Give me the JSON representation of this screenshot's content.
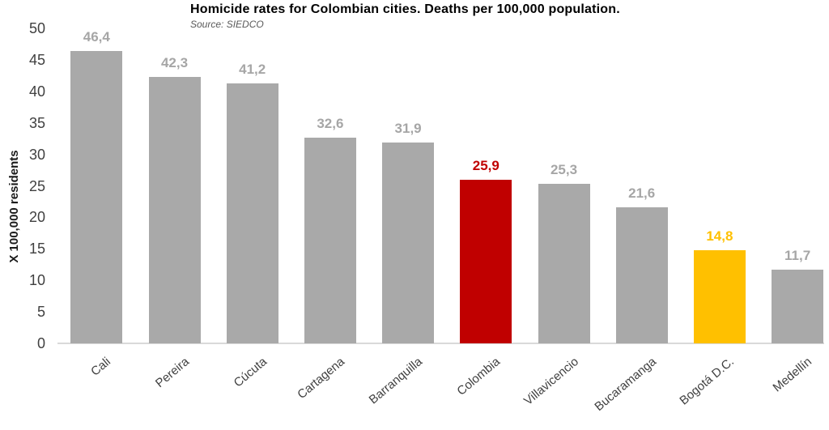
{
  "chart_data": {
    "type": "bar",
    "title": "Homicide rates for Colombian cities. Deaths per 100,000 population.",
    "subtitle": "Source: SIEDCO",
    "ylabel": "X 100,000 residents",
    "xlabel": "",
    "ylim": [
      0,
      50
    ],
    "ytick_step": 5,
    "ytick_labels": [
      "0",
      "5",
      "10",
      "15",
      "20",
      "25",
      "30",
      "35",
      "40",
      "45",
      "50"
    ],
    "grid": false,
    "legend": "none",
    "decimal_separator": ",",
    "categories": [
      "Cali",
      "Pereira",
      "Cúcuta",
      "Cartagena",
      "Barranquilla",
      "Colombia",
      "Villavicencio",
      "Bucaramanga",
      "Bogotá D.C.",
      "Medellín"
    ],
    "values": [
      46.4,
      42.3,
      41.2,
      32.6,
      31.9,
      25.9,
      25.3,
      21.6,
      14.8,
      11.7
    ],
    "bars": [
      {
        "category": "Cali",
        "value": 46.4,
        "display": "46,4",
        "bar_color": "#a9a9a9",
        "label_color": "#a6a6a6"
      },
      {
        "category": "Pereira",
        "value": 42.3,
        "display": "42,3",
        "bar_color": "#a9a9a9",
        "label_color": "#a6a6a6"
      },
      {
        "category": "Cúcuta",
        "value": 41.2,
        "display": "41,2",
        "bar_color": "#a9a9a9",
        "label_color": "#a6a6a6"
      },
      {
        "category": "Cartagena",
        "value": 32.6,
        "display": "32,6",
        "bar_color": "#a9a9a9",
        "label_color": "#a6a6a6"
      },
      {
        "category": "Barranquilla",
        "value": 31.9,
        "display": "31,9",
        "bar_color": "#a9a9a9",
        "label_color": "#a6a6a6"
      },
      {
        "category": "Colombia",
        "value": 25.9,
        "display": "25,9",
        "bar_color": "#c00000",
        "label_color": "#c00000"
      },
      {
        "category": "Villavicencio",
        "value": 25.3,
        "display": "25,3",
        "bar_color": "#a9a9a9",
        "label_color": "#a6a6a6"
      },
      {
        "category": "Bucaramanga",
        "value": 21.6,
        "display": "21,6",
        "bar_color": "#a9a9a9",
        "label_color": "#a6a6a6"
      },
      {
        "category": "Bogotá D.C.",
        "value": 14.8,
        "display": "14,8",
        "bar_color": "#ffc000",
        "label_color": "#ffc000"
      },
      {
        "category": "Medellín",
        "value": 11.7,
        "display": "11,7",
        "bar_color": "#a9a9a9",
        "label_color": "#a6a6a6"
      }
    ],
    "colors": {
      "default_bar": "#a9a9a9",
      "highlight_red": "#c00000",
      "highlight_yellow": "#ffc000",
      "value_label_gray": "#a6a6a6",
      "axis_text": "#404040",
      "baseline": "#d9d9d9",
      "title_text": "#000000",
      "subtitle_text": "#595959"
    }
  }
}
